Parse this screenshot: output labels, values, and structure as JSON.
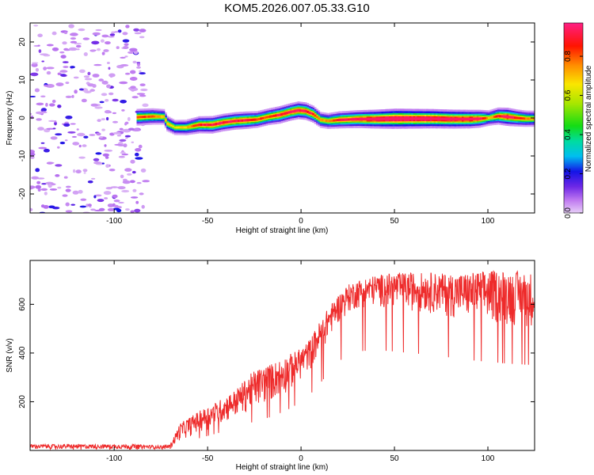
{
  "title": "KOM5.2026.007.05.33.G10",
  "colors": {
    "trace": "#ee2b2b",
    "axis": "#000000",
    "background": "#ffffff"
  },
  "chart_data": [
    {
      "type": "heatmap",
      "title": "KOM5.2026.007.05.33.G10",
      "xlabel": "Height of straight line (km)",
      "ylabel": "Frequency (Hz)",
      "xlim": [
        -145,
        125
      ],
      "ylim": [
        -25,
        25
      ],
      "xticks": [
        -100,
        -50,
        0,
        50,
        100
      ],
      "yticks": [
        -20,
        -10,
        0,
        10,
        20
      ],
      "colorbar": {
        "label": "Normalized spectral amplitude",
        "range": [
          0,
          0.97
        ],
        "ticks": [
          0.0,
          0.2,
          0.4,
          0.6,
          0.8
        ],
        "colormap": "rainbow: magenta-white (0) > violet > blue > cyan > green > yellow > orange > red > pink (max)"
      },
      "ridge": {
        "description": "Main spectral peak frequency vs height",
        "x": [
          -88,
          -80,
          -74,
          -72,
          -68,
          -62,
          -55,
          -48,
          -42,
          -36,
          -30,
          -24,
          -18,
          -12,
          -6,
          -2,
          2,
          6,
          10,
          14,
          20,
          30,
          40,
          50,
          60,
          70,
          80,
          90,
          95,
          100,
          105,
          110,
          115,
          120,
          125
        ],
        "y": [
          0.2,
          0.4,
          0.3,
          -1.5,
          -2.5,
          -2.5,
          -1.8,
          -1.8,
          -1.2,
          -0.8,
          -0.6,
          -0.4,
          0.3,
          0.8,
          1.6,
          2.0,
          1.8,
          1.0,
          -0.5,
          -0.8,
          -0.5,
          -0.3,
          -0.3,
          -0.2,
          -0.2,
          -0.2,
          -0.3,
          -0.3,
          -0.2,
          0.0,
          0.5,
          0.3,
          0.0,
          -0.2,
          -0.2
        ],
        "amplitude": [
          0.45,
          0.4,
          0.3,
          0.3,
          0.25,
          0.3,
          0.5,
          0.55,
          0.55,
          0.55,
          0.55,
          0.45,
          0.45,
          0.55,
          0.55,
          0.6,
          0.55,
          0.5,
          0.35,
          0.35,
          0.5,
          0.6,
          0.75,
          0.9,
          0.85,
          0.8,
          0.75,
          0.7,
          0.6,
          0.3,
          0.5,
          0.65,
          0.5,
          0.4,
          0.35
        ]
      },
      "noise_region_x": [
        -145,
        -83
      ]
    },
    {
      "type": "line",
      "xlabel": "Height of straight line (km)",
      "ylabel": "SNR (v/v)",
      "xlim": [
        -145,
        125
      ],
      "ylim": [
        0,
        780
      ],
      "xticks": [
        -100,
        -50,
        0,
        50,
        100
      ],
      "yticks": [
        200,
        400,
        600
      ],
      "series": [
        {
          "envelope_x": [
            -145,
            -90,
            -75,
            -70,
            -65,
            -55,
            -45,
            -35,
            -25,
            -15,
            -5,
            0,
            5,
            10,
            15,
            20,
            25,
            30,
            40,
            50,
            60,
            70,
            80,
            90,
            100,
            110,
            125
          ],
          "lower": [
            5,
            5,
            5,
            5,
            40,
            70,
            100,
            130,
            170,
            200,
            250,
            290,
            330,
            390,
            460,
            520,
            560,
            580,
            590,
            580,
            570,
            560,
            545,
            530,
            520,
            510,
            500
          ],
          "upper": [
            25,
            25,
            20,
            25,
            110,
            160,
            200,
            250,
            330,
            360,
            400,
            420,
            460,
            530,
            590,
            640,
            680,
            700,
            720,
            730,
            730,
            730,
            725,
            730,
            740,
            740,
            730
          ]
        }
      ]
    }
  ],
  "labels": {
    "top_xlabel": "Height of straight line (km)",
    "bottom_xlabel": "Height of straight line (km)",
    "top_ylabel": "Frequency (Hz)",
    "bottom_ylabel": "SNR (v/v)",
    "colorbar_label": "Normalized spectral amplitude"
  }
}
